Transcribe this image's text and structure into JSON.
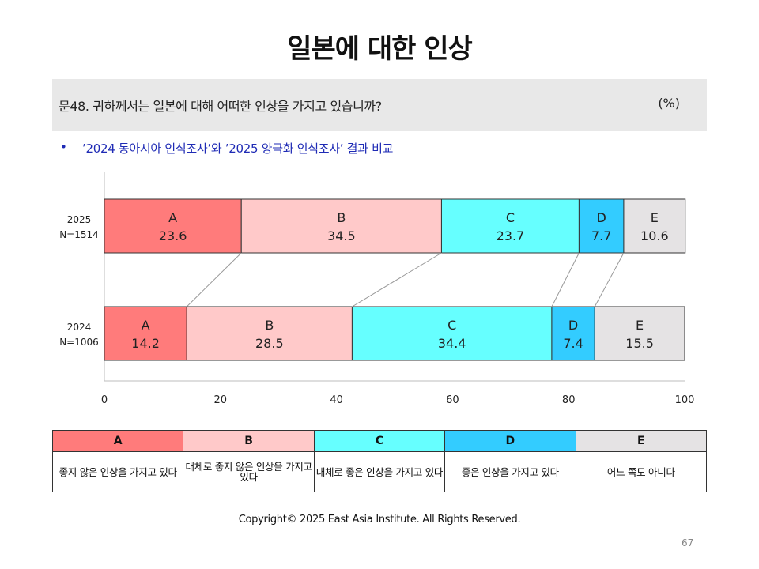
{
  "page": {
    "title": "일본에 대한 인상",
    "question": "문48. 귀하께서는 일본에 대해 어떠한 인상을 가지고 있습니까?",
    "unit": "(%)",
    "bullet_marker": "•",
    "bullet": "’2024 동아시아 인식조사’와 ’2025 양극화 인식조사’ 결과 비교",
    "copyright": "Copyright© 2025 East Asia Institute. All Rights Reserved.",
    "page_number": "67"
  },
  "chart_data": {
    "type": "bar",
    "orientation": "horizontal",
    "stacked": true,
    "categories": [
      "A",
      "B",
      "C",
      "D",
      "E"
    ],
    "colors": [
      "#ff7b7b",
      "#ffc9c9",
      "#66ffff",
      "#33ccff",
      "#e5e3e4"
    ],
    "rows": [
      {
        "year": "2025",
        "n": "N=1514",
        "values": [
          23.6,
          34.5,
          23.7,
          7.7,
          10.6
        ]
      },
      {
        "year": "2024",
        "n": "N=1006",
        "values": [
          14.2,
          28.5,
          34.4,
          7.4,
          15.5
        ]
      }
    ],
    "xlim": [
      0,
      100
    ],
    "xticks": [
      "0",
      "20",
      "40",
      "60",
      "80",
      "100"
    ],
    "connector_lines": true,
    "grid": false,
    "legend_position": "bottom-table"
  },
  "legend": {
    "headers": [
      "A",
      "B",
      "C",
      "D",
      "E"
    ],
    "colors": [
      "#ff7b7b",
      "#ffc9c9",
      "#66ffff",
      "#33ccff",
      "#e5e3e4"
    ],
    "descriptions": [
      "좋지 않은 인상을 가지고 있다",
      "대체로 좋지 않은 인상을 가지고 있다",
      "대체로 좋은 인상을 가지고 있다",
      "좋은 인상을 가지고 있다",
      "어느 쪽도 아니다"
    ]
  }
}
